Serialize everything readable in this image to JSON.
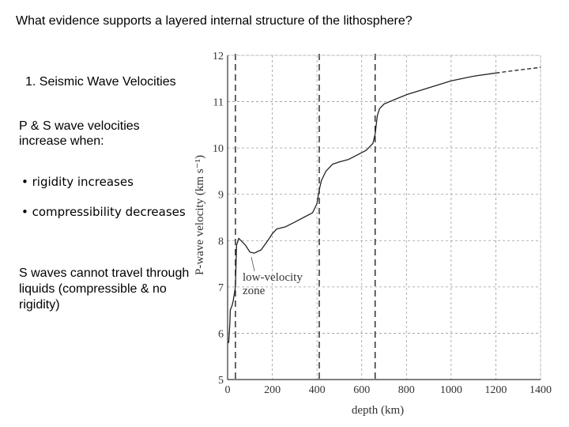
{
  "slide": {
    "title": "What evidence supports a layered internal structure of the lithosphere?",
    "heading": "1. Seismic Wave Velocities",
    "intro": "P & S wave velocities increase when:",
    "bullets": [
      "• rigidity increases",
      "• compressibility decreases"
    ],
    "note": "S waves cannot travel through liquids (compressible & no rigidity)"
  },
  "chart_data": {
    "type": "line",
    "xlabel": "depth (km)",
    "ylabel": "P-wave velocity (km s⁻¹)",
    "xlim": [
      0,
      1400
    ],
    "ylim": [
      5,
      12
    ],
    "x_ticks": [
      0,
      200,
      400,
      600,
      800,
      1000,
      1200,
      1400
    ],
    "y_ticks": [
      5,
      6,
      7,
      8,
      9,
      10,
      11,
      12
    ],
    "grid": true,
    "reference_lines_depth": [
      35,
      410,
      660
    ],
    "annotation": "low-velocity zone",
    "series": [
      {
        "x": [
          0,
          5,
          10,
          12,
          20,
          25,
          35,
          40,
          50,
          60,
          80,
          100,
          120,
          150,
          180,
          200,
          220,
          260,
          300,
          340,
          380,
          400,
          410,
          420,
          440,
          470,
          500,
          540,
          580,
          620,
          650,
          660,
          670,
          680,
          700,
          750,
          800,
          900,
          1000,
          1100,
          1200
        ],
        "y": [
          5.8,
          5.8,
          6.2,
          6.5,
          6.6,
          6.7,
          7.0,
          7.9,
          8.05,
          8.0,
          7.9,
          7.75,
          7.73,
          7.8,
          8.0,
          8.15,
          8.25,
          8.3,
          8.4,
          8.5,
          8.6,
          8.8,
          9.1,
          9.3,
          9.5,
          9.65,
          9.7,
          9.75,
          9.85,
          9.95,
          10.1,
          10.3,
          10.7,
          10.85,
          10.95,
          11.05,
          11.15,
          11.3,
          11.45,
          11.55,
          11.62
        ]
      },
      {
        "style": "dashed",
        "x": [
          1200,
          1300,
          1400
        ],
        "y": [
          11.62,
          11.68,
          11.74
        ]
      }
    ]
  }
}
